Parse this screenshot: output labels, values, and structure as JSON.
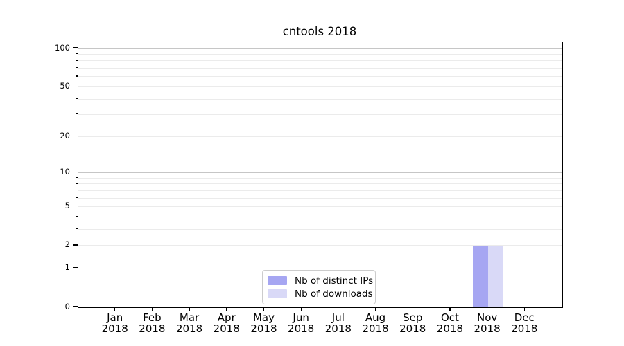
{
  "chart_data": {
    "type": "bar",
    "title": "cntools 2018",
    "categories": [
      {
        "month": "Jan",
        "year": "2018"
      },
      {
        "month": "Feb",
        "year": "2018"
      },
      {
        "month": "Mar",
        "year": "2018"
      },
      {
        "month": "Apr",
        "year": "2018"
      },
      {
        "month": "May",
        "year": "2018"
      },
      {
        "month": "Jun",
        "year": "2018"
      },
      {
        "month": "Jul",
        "year": "2018"
      },
      {
        "month": "Aug",
        "year": "2018"
      },
      {
        "month": "Sep",
        "year": "2018"
      },
      {
        "month": "Oct",
        "year": "2018"
      },
      {
        "month": "Nov",
        "year": "2018"
      },
      {
        "month": "Dec",
        "year": "2018"
      }
    ],
    "series": [
      {
        "name": "Nb of distinct IPs",
        "color": "#a6a6f2",
        "bar_fill": "rgba(0,0,218,0.35)",
        "values": [
          0,
          0,
          0,
          0,
          0,
          0,
          0,
          0,
          0,
          0,
          2,
          0
        ]
      },
      {
        "name": "Nb of downloads",
        "color": "#d9d9f7",
        "bar_fill": "rgba(0,0,200,0.15)",
        "values": [
          0,
          0,
          0,
          0,
          0,
          0,
          0,
          0,
          0,
          0,
          2,
          0
        ]
      }
    ],
    "y_axis": {
      "scale": "log1p",
      "ylim": [
        0,
        112
      ],
      "labeled_ticks": [
        0,
        1,
        2,
        5,
        10,
        20,
        50,
        100
      ],
      "decade_ticks": [
        1,
        10,
        100
      ],
      "minor_ticks": [
        3,
        4,
        6,
        7,
        8,
        9,
        30,
        40,
        60,
        70,
        80,
        90
      ]
    },
    "grid": {
      "decade_color": "#c6c6c6",
      "minor_color": "#ebebeb"
    },
    "legend": {
      "position": "lower center"
    }
  }
}
